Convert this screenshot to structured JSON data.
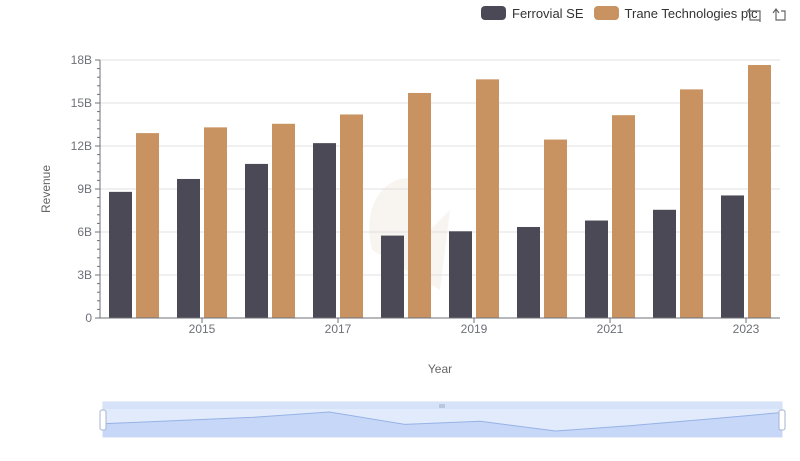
{
  "chart_data": {
    "type": "bar",
    "categories": [
      "2014",
      "2015",
      "2016",
      "2017",
      "2018",
      "2019",
      "2020",
      "2021",
      "2022",
      "2023"
    ],
    "x_tick_labels": [
      "2015",
      "2017",
      "2019",
      "2021",
      "2023"
    ],
    "y_tick_labels": [
      "0",
      "3B",
      "6B",
      "9B",
      "12B",
      "15B",
      "18B"
    ],
    "series": [
      {
        "name": "Ferrovial SE",
        "color": "#4a4955",
        "values": [
          8.8,
          9.7,
          10.75,
          12.2,
          5.75,
          6.05,
          6.35,
          6.8,
          7.55,
          8.55
        ]
      },
      {
        "name": "Trane Technologies plc",
        "color": "#c89360",
        "values": [
          12.9,
          13.3,
          13.55,
          14.2,
          15.7,
          16.65,
          12.45,
          14.15,
          15.95,
          17.65
        ]
      }
    ],
    "xlabel": "Year",
    "ylabel": "Revenue",
    "ylim": [
      0,
      18
    ],
    "y_unit": "billions",
    "grid": true,
    "legend_position": "top-right"
  },
  "toolbox": {
    "zoom_icon": "zoom-icon",
    "reset_icon": "zoom-reset-icon"
  },
  "data_zoom": {
    "start": 0,
    "end": 100
  }
}
